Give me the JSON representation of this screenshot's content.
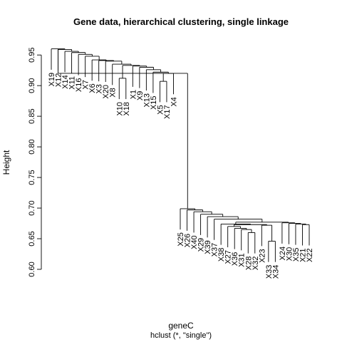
{
  "chart_data": {
    "type": "dendrogram",
    "title": "Gene data, hierarchical clustering, single linkage",
    "xlabel": "geneC",
    "sub": "hclust (*, \"single\")",
    "ylabel": "Height",
    "ylim": [
      0.6,
      0.97
    ],
    "yticks": [
      0.6,
      0.65,
      0.7,
      0.75,
      0.8,
      0.85,
      0.9,
      0.95
    ],
    "ytick_labels": [
      "0.60",
      "0.65",
      "0.70",
      "0.75",
      "0.80",
      "0.85",
      "0.90",
      "0.95"
    ],
    "leaf_label_offset": 0.006,
    "leaves": [
      "X19",
      "X12",
      "X14",
      "X11",
      "X16",
      "X7",
      "X6",
      "X3",
      "X20",
      "X8",
      "X10",
      "X18",
      "X1",
      "X9",
      "X13",
      "X15",
      "X5",
      "X17",
      "X4",
      "X25",
      "X26",
      "X40",
      "X29",
      "X39",
      "X37",
      "X38",
      "X27",
      "X36",
      "X31",
      "X28",
      "X32",
      "X23",
      "X33",
      "X34",
      "X24",
      "X30",
      "X35",
      "X21",
      "X22"
    ],
    "merges": [
      [
        1,
        2,
        0.96
      ],
      [
        3,
        4,
        0.957
      ],
      [
        5,
        6,
        0.954
      ],
      [
        7,
        8,
        0.951
      ],
      [
        9,
        10,
        0.947
      ],
      [
        11,
        12,
        0.942
      ],
      [
        13,
        14,
        0.941
      ],
      [
        15,
        16,
        0.938
      ],
      [
        17,
        18,
        0.934
      ],
      [
        19,
        20,
        0.933
      ],
      [
        21,
        22,
        0.932
      ],
      [
        23,
        24,
        0.93
      ],
      [
        25,
        26,
        0.928
      ],
      [
        27,
        28,
        0.926
      ],
      [
        29,
        30,
        0.924
      ],
      [
        31,
        32,
        0.919
      ],
      [
        33,
        34,
        0.913
      ],
      [
        35,
        36,
        0.907
      ],
      [
        37,
        38,
        0.903
      ],
      [
        39,
        40,
        0.699
      ],
      [
        41,
        42,
        0.697
      ],
      [
        43,
        44,
        0.694
      ],
      [
        45,
        46,
        0.69
      ],
      [
        47,
        48,
        0.686
      ],
      [
        49,
        50,
        0.682
      ],
      [
        51,
        52,
        0.675
      ],
      [
        53,
        54,
        0.674
      ],
      [
        55,
        56,
        0.673
      ],
      [
        57,
        58,
        0.672
      ],
      [
        59,
        60,
        0.67
      ],
      [
        61,
        62,
        0.667
      ],
      [
        63,
        64,
        0.665
      ],
      [
        65,
        66,
        0.66
      ],
      [
        67,
        68,
        0.646
      ],
      [
        69,
        70,
        0.676
      ],
      [
        71,
        72,
        0.675
      ],
      [
        73,
        74,
        0.674
      ],
      [
        75,
        76,
        0.673
      ]
    ],
    "extra_merges_note": ""
  }
}
